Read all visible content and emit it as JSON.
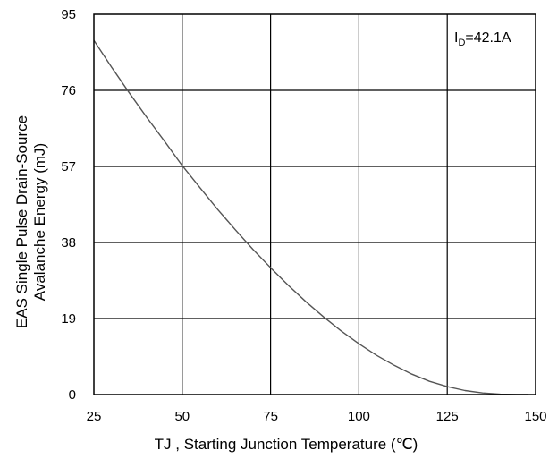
{
  "chart_data": {
    "type": "line",
    "title": "",
    "xlabel": "TJ , Starting Junction Temperature (℃)",
    "ylabel_line1": "EAS Single Pulse Drain-Source",
    "ylabel_line2": "Avalanche Energy (mJ)",
    "xlim": [
      25,
      150
    ],
    "ylim": [
      0,
      95
    ],
    "x_ticks": [
      25,
      50,
      75,
      100,
      125,
      150
    ],
    "y_ticks": [
      0,
      19,
      38,
      57,
      76,
      95
    ],
    "grid": true,
    "legend": "none",
    "annotation": {
      "main": "I",
      "sub": "D",
      "rest": "=42.1A",
      "placement": "top-right"
    },
    "series": [
      {
        "color": "#555555",
        "x": [
          25,
          30,
          35,
          40,
          45,
          50,
          55,
          60,
          65,
          70,
          75,
          80,
          85,
          90,
          95,
          100,
          105,
          110,
          115,
          120,
          125,
          130,
          135,
          140,
          145,
          148
        ],
        "y": [
          88.5,
          81.8,
          75.4,
          69.2,
          63.3,
          57.2,
          51.7,
          46.3,
          41.2,
          36.3,
          31.7,
          27.3,
          23.2,
          19.4,
          15.9,
          12.7,
          9.8,
          7.3,
          5.1,
          3.3,
          2.0,
          1.0,
          0.4,
          0.1,
          0.0,
          0.0
        ]
      }
    ]
  }
}
